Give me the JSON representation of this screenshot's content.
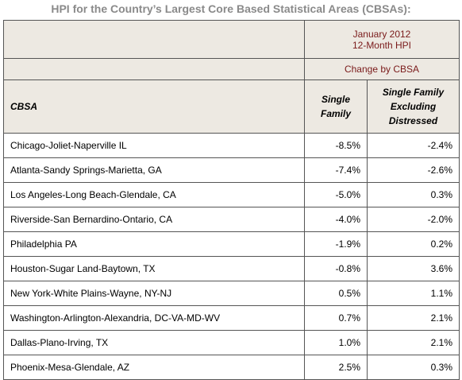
{
  "title": "HPI for the Country’s Largest Core Based Statistical Areas (CBSAs):",
  "header": {
    "period_line1": "January 2012",
    "period_line2": "12-Month HPI",
    "change_label": "Change by CBSA",
    "cbsa_label": "CBSA",
    "col1_line1": "Single",
    "col1_line2": "Family",
    "col2_line1": "Single Family",
    "col2_line2": "Excluding",
    "col2_line3": "Distressed"
  },
  "rows": [
    {
      "cbsa": "Chicago-Joliet-Naperville IL",
      "single_family": "-8.5%",
      "excluding_distressed": "-2.4%"
    },
    {
      "cbsa": "Atlanta-Sandy Springs-Marietta, GA",
      "single_family": "-7.4%",
      "excluding_distressed": "-2.6%"
    },
    {
      "cbsa": "Los Angeles-Long Beach-Glendale, CA",
      "single_family": "-5.0%",
      "excluding_distressed": "0.3%"
    },
    {
      "cbsa": "Riverside-San Bernardino-Ontario, CA",
      "single_family": "-4.0%",
      "excluding_distressed": "-2.0%"
    },
    {
      "cbsa": "Philadelphia PA",
      "single_family": "-1.9%",
      "excluding_distressed": "0.2%"
    },
    {
      "cbsa": "Houston-Sugar Land-Baytown, TX",
      "single_family": "-0.8%",
      "excluding_distressed": "3.6%"
    },
    {
      "cbsa": "New York-White Plains-Wayne, NY-NJ",
      "single_family": "0.5%",
      "excluding_distressed": "1.1%"
    },
    {
      "cbsa": "Washington-Arlington-Alexandria, DC-VA-MD-WV",
      "single_family": "0.7%",
      "excluding_distressed": "2.1%"
    },
    {
      "cbsa": "Dallas-Plano-Irving, TX",
      "single_family": "1.0%",
      "excluding_distressed": "2.1%"
    },
    {
      "cbsa": "Phoenix-Mesa-Glendale, AZ",
      "single_family": "2.5%",
      "excluding_distressed": "0.3%"
    }
  ],
  "colors": {
    "header_bg": "#ede9e2",
    "header_accent": "#7a1a1a",
    "title": "#8a8a8a",
    "border": "#555555"
  }
}
